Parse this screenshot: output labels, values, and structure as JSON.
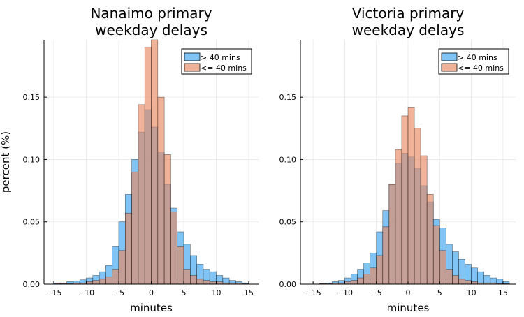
{
  "colors": {
    "series_gt40": "#3BA5F0",
    "series_le40": "#E88A64",
    "grid": "#e8e8e8",
    "axis": "#000000"
  },
  "chart_data": [
    {
      "type": "histogram",
      "title": "Nanaimo primary\nweekday delays",
      "xlabel": "minutes",
      "ylabel": "percent (%)",
      "xlim": [
        -16.5,
        16.5
      ],
      "ylim": [
        0,
        0.196
      ],
      "xticks": [
        -15,
        -10,
        -5,
        0,
        5,
        10,
        15
      ],
      "yticks": [
        0.0,
        0.05,
        0.1,
        0.15
      ],
      "ytick_labels": [
        "0.00",
        "0.05",
        "0.10",
        "0.15"
      ],
      "grid": true,
      "legend": "top-right",
      "bin_edges": [
        -15,
        -14,
        -13,
        -12,
        -11,
        -10,
        -9,
        -8,
        -7,
        -6,
        -5,
        -4,
        -3,
        -2,
        -1,
        0,
        1,
        2,
        3,
        4,
        5,
        6,
        7,
        8,
        9,
        10,
        11,
        12,
        13,
        14,
        15
      ],
      "series": [
        {
          "name": "> 40 mins",
          "color_key": "series_gt40",
          "values": [
            0.001,
            0.001,
            0.002,
            0.0025,
            0.0035,
            0.005,
            0.007,
            0.01,
            0.015,
            0.03,
            0.05,
            0.072,
            0.1,
            0.122,
            0.14,
            0.126,
            0.106,
            0.08,
            0.061,
            0.042,
            0.032,
            0.023,
            0.016,
            0.012,
            0.01,
            0.007,
            0.005,
            0.003,
            0.002,
            0.001
          ]
        },
        {
          "name": "<= 40 mins",
          "color_key": "series_le40",
          "values": [
            0.0005,
            0.0005,
            0.0005,
            0.001,
            0.001,
            0.002,
            0.003,
            0.004,
            0.006,
            0.012,
            0.027,
            0.057,
            0.09,
            0.144,
            0.19,
            0.196,
            0.15,
            0.104,
            0.058,
            0.03,
            0.012,
            0.007,
            0.004,
            0.003,
            0.002,
            0.002,
            0.001,
            0.001,
            0.001,
            0.0005
          ]
        }
      ]
    },
    {
      "type": "histogram",
      "title": "Victoria primary\nweekday delays",
      "xlabel": "minutes",
      "ylabel": "",
      "xlim": [
        -17,
        17
      ],
      "ylim": [
        0,
        0.196
      ],
      "xticks": [
        -15,
        -10,
        -5,
        0,
        5,
        10,
        15
      ],
      "yticks": [
        0.0,
        0.05,
        0.1,
        0.15
      ],
      "ytick_labels": [
        "0.00",
        "0.05",
        "0.10",
        "0.15"
      ],
      "grid": true,
      "legend": "top-right",
      "bin_edges": [
        -14,
        -13,
        -12,
        -11,
        -10,
        -9,
        -8,
        -7,
        -6,
        -5,
        -4,
        -3,
        -2,
        -1,
        0,
        1,
        2,
        3,
        4,
        5,
        6,
        7,
        8,
        9,
        10,
        11,
        12,
        13,
        14,
        15,
        16
      ],
      "series": [
        {
          "name": "> 40 mins",
          "color_key": "series_gt40",
          "values": [
            0.0005,
            0.001,
            0.002,
            0.003,
            0.005,
            0.008,
            0.012,
            0.017,
            0.025,
            0.042,
            0.059,
            0.08,
            0.097,
            0.105,
            0.102,
            0.093,
            0.079,
            0.066,
            0.052,
            0.045,
            0.032,
            0.026,
            0.02,
            0.016,
            0.013,
            0.01,
            0.007,
            0.005,
            0.004,
            0.002
          ]
        },
        {
          "name": "<= 40 mins",
          "color_key": "series_le40",
          "values": [
            0.0005,
            0.0005,
            0.001,
            0.001,
            0.002,
            0.003,
            0.005,
            0.008,
            0.013,
            0.023,
            0.046,
            0.08,
            0.108,
            0.135,
            0.142,
            0.125,
            0.103,
            0.072,
            0.047,
            0.027,
            0.012,
            0.007,
            0.004,
            0.003,
            0.002,
            0.001,
            0.001,
            0.001,
            0.0005,
            0.0005
          ]
        }
      ]
    }
  ]
}
